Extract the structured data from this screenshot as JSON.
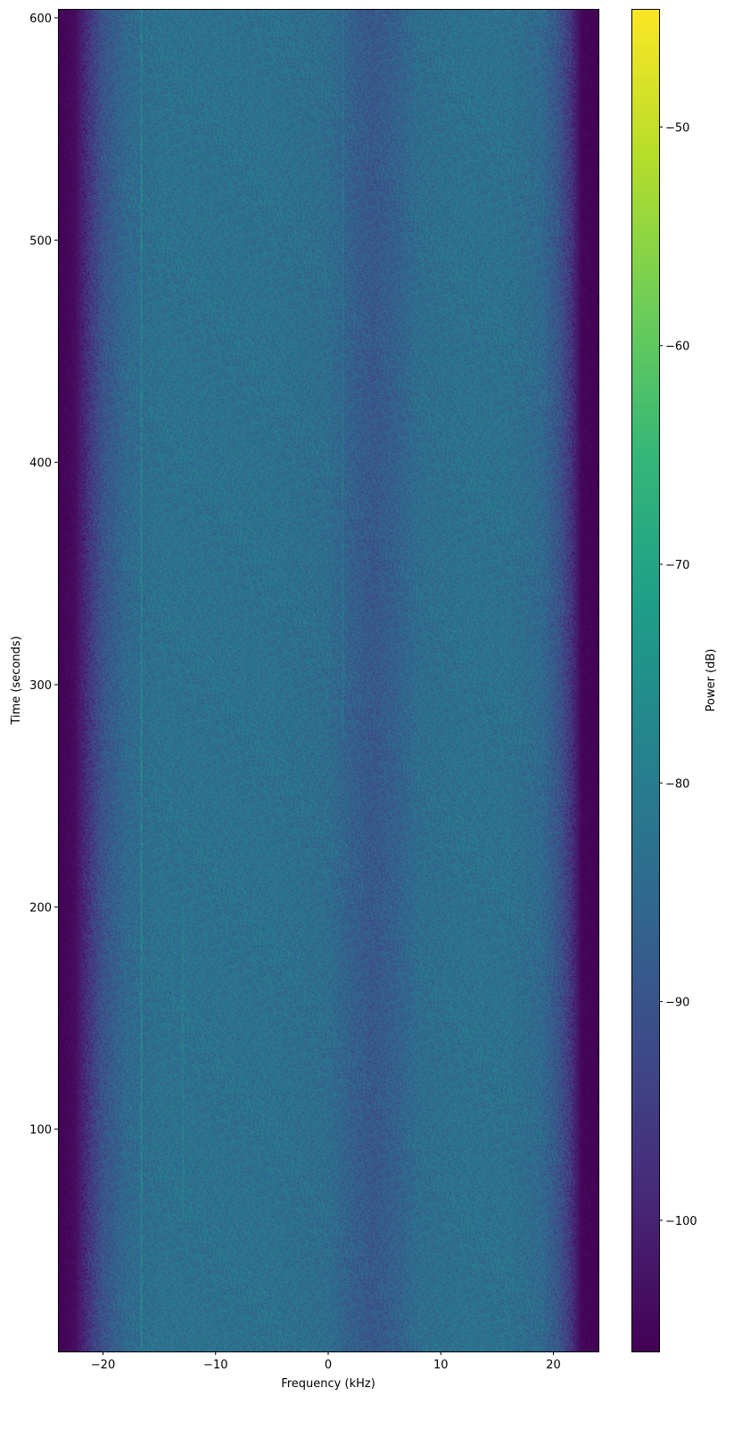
{
  "chart_data": {
    "type": "heatmap",
    "title": "",
    "xlabel": "Frequency (kHz)",
    "ylabel": "Time (seconds)",
    "xlim": [
      -24,
      24
    ],
    "ylim": [
      0,
      604
    ],
    "xticks": [
      -20,
      -10,
      0,
      10,
      20
    ],
    "xtick_labels": [
      "−20",
      "−10",
      "0",
      "10",
      "20"
    ],
    "yticks": [
      100,
      200,
      300,
      400,
      500,
      600
    ],
    "ytick_labels": [
      "100",
      "200",
      "300",
      "400",
      "500",
      "600"
    ],
    "colormap": "viridis",
    "colorbar": {
      "label": "Power (dB)",
      "range": [
        -106,
        -44.6
      ],
      "ticks": [
        -50,
        -60,
        -70,
        -80,
        -90,
        -100
      ],
      "tick_labels": [
        "−50",
        "−60",
        "−70",
        "−80",
        "−90",
        "−100"
      ]
    },
    "mean_power_profile": {
      "frequency_khz": [
        -24,
        -22.5,
        -21,
        -20,
        -18,
        -15,
        -10,
        -5,
        0,
        2,
        4,
        6,
        8,
        12,
        16,
        19,
        20.5,
        21.5,
        22.5,
        24
      ],
      "power_db": [
        -106,
        -104,
        -95,
        -90,
        -85,
        -83,
        -83,
        -83,
        -84,
        -87,
        -89,
        -87,
        -84,
        -83,
        -83,
        -85,
        -90,
        -96,
        -105,
        -106
      ]
    },
    "spectral_lines": [
      {
        "frequency_khz": -16.6,
        "time_range": [
          0,
          604
        ],
        "power_db": -74
      },
      {
        "frequency_khz": 1.3,
        "time_range": [
          275,
          604
        ],
        "power_db": -80
      },
      {
        "frequency_khz": -12.9,
        "time_range": [
          60,
          200
        ],
        "power_db": -80
      }
    ],
    "grid": false
  }
}
